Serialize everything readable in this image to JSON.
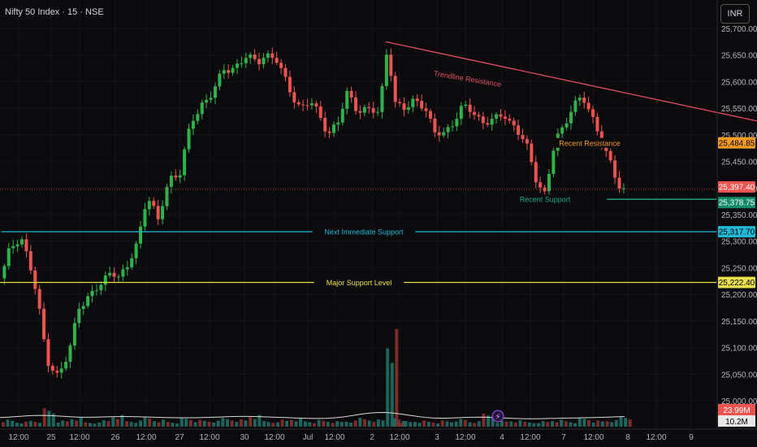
{
  "header": {
    "title": "Nifty 50 Index · 15 · NSE",
    "currency_button": "INR"
  },
  "colors": {
    "background": "#0b0b0d",
    "up": "#26a69a",
    "up_candle": "#2db34a",
    "down": "#ef5350",
    "trendline": "#e04f63",
    "resistance": "#f39c21",
    "support": "#1fa982",
    "next_support": "#22b8d6",
    "major_support": "#e8e04a"
  },
  "chart_data": {
    "type": "candlestick",
    "y_axis": {
      "ticks": [
        25000,
        25050,
        25100,
        25150,
        25200,
        25250,
        25300,
        25350,
        25400,
        25450,
        25500,
        25550,
        25600,
        25650,
        25700
      ],
      "tick_labels": [
        "25,000.00",
        "25,050.00",
        "25,100.00",
        "25,150.00",
        "25,200.00",
        "25,250.00",
        "25,300.00",
        "25,350.00",
        "25,400.00",
        "25,450.00",
        "25,500.00",
        "25,550.00",
        "25,600.00",
        "25,650.00",
        "25,700.00"
      ],
      "range": [
        24980,
        25725
      ]
    },
    "x_axis": {
      "labels": [
        "12:00",
        "25",
        "12:00",
        "26",
        "12:00",
        "27",
        "12:00",
        "30",
        "12:00",
        "Jul",
        "12:00",
        "2",
        "12:00",
        "3",
        "12:00",
        "4",
        "12:00",
        "7",
        "12:00",
        "8",
        "12:00",
        "9"
      ]
    },
    "price_labels": [
      {
        "value": 25484.85,
        "text": "25,484.85",
        "kind": "resistance"
      },
      {
        "value": 25397.4,
        "text": "25,397.40",
        "kind": "last"
      },
      {
        "value": 25378.75,
        "text": "25,378.75",
        "kind": "support"
      },
      {
        "value": 25317.7,
        "text": "25,317.70",
        "kind": "next_support"
      },
      {
        "value": 25222.4,
        "text": "25,222.40",
        "kind": "major_support"
      }
    ],
    "volume_labels": [
      {
        "text": "23.99M",
        "kind": "volume_last"
      },
      {
        "text": "10.2M",
        "kind": "volume_avg"
      }
    ],
    "annotations": [
      {
        "text": "Trendline Resistance",
        "kind": "trendline",
        "start_x": 28.1,
        "start_y": 25675,
        "end_x": 57.5,
        "end_y": 25513
      },
      {
        "text": "Recent Resistance",
        "kind": "resistance",
        "y": 25484.85,
        "start_x": 52.2,
        "end_x": 61.0
      },
      {
        "text": "Recent Support",
        "kind": "support",
        "y": 25378.75,
        "start_x": 44.2,
        "end_x": 61.0
      },
      {
        "text": "Next Immediate Support",
        "kind": "next_support",
        "y": 25317.7,
        "start_x": 0.1,
        "end_x": 61.0
      },
      {
        "text": "Major Support Level",
        "kind": "major_support",
        "y": 25222.4,
        "start_x": 0,
        "end_x": 61.0
      }
    ],
    "price_path": [
      [
        0,
        25230
      ],
      [
        0.6,
        25285
      ],
      [
        1.4,
        25312
      ],
      [
        2.0,
        25260
      ],
      [
        2.6,
        25190
      ],
      [
        3.3,
        25080
      ],
      [
        4.1,
        25045
      ],
      [
        4.9,
        25085
      ],
      [
        5.6,
        25180
      ],
      [
        6.4,
        25195
      ],
      [
        7.2,
        25215
      ],
      [
        8.0,
        25250
      ],
      [
        8.6,
        25230
      ],
      [
        9.2,
        25250
      ],
      [
        9.9,
        25300
      ],
      [
        10.6,
        25390
      ],
      [
        11.4,
        25335
      ],
      [
        12.2,
        25420
      ],
      [
        13.0,
        25430
      ],
      [
        13.8,
        25520
      ],
      [
        14.6,
        25560
      ],
      [
        15.4,
        25580
      ],
      [
        16.2,
        25620
      ],
      [
        17.0,
        25630
      ],
      [
        17.8,
        25645
      ],
      [
        18.6,
        25635
      ],
      [
        19.2,
        25655
      ],
      [
        20.0,
        25640
      ],
      [
        20.6,
        25605
      ],
      [
        21.1,
        25580
      ],
      [
        21.8,
        25550
      ],
      [
        22.5,
        25560
      ],
      [
        23.2,
        25535
      ],
      [
        23.8,
        25505
      ],
      [
        24.5,
        25520
      ],
      [
        25.2,
        25580
      ],
      [
        25.9,
        25550
      ],
      [
        26.7,
        25545
      ],
      [
        27.5,
        25540
      ],
      [
        28.1,
        25670
      ],
      [
        28.7,
        25555
      ],
      [
        29.4,
        25545
      ],
      [
        30.1,
        25570
      ],
      [
        30.8,
        25555
      ],
      [
        31.5,
        25500
      ],
      [
        32.2,
        25505
      ],
      [
        32.9,
        25525
      ],
      [
        33.6,
        25550
      ],
      [
        34.3,
        25545
      ],
      [
        35.1,
        25525
      ],
      [
        35.9,
        25525
      ],
      [
        36.6,
        25540
      ],
      [
        37.4,
        25515
      ],
      [
        38.2,
        25480
      ],
      [
        38.9,
        25420
      ],
      [
        39.6,
        25390
      ],
      [
        40.3,
        25485
      ],
      [
        40.9,
        25510
      ],
      [
        41.6,
        25560
      ],
      [
        42.3,
        25570
      ],
      [
        43.0,
        25530
      ],
      [
        43.6,
        25500
      ],
      [
        44.2,
        25460
      ],
      [
        44.9,
        25400
      ],
      [
        45.5,
        25390
      ]
    ],
    "volume_path": [
      [
        0,
        0.25
      ],
      [
        1,
        0.18
      ],
      [
        2,
        0.22
      ],
      [
        3,
        0.6
      ],
      [
        4,
        0.2
      ],
      [
        5,
        0.3
      ],
      [
        6,
        0.15
      ],
      [
        7,
        0.22
      ],
      [
        8,
        0.4
      ],
      [
        9,
        0.2
      ],
      [
        10,
        0.35
      ],
      [
        11,
        0.25
      ],
      [
        12,
        0.18
      ],
      [
        13,
        0.3
      ],
      [
        14,
        0.22
      ],
      [
        15,
        0.2
      ],
      [
        16,
        0.3
      ],
      [
        17,
        0.25
      ],
      [
        18,
        0.4
      ],
      [
        19,
        0.2
      ],
      [
        20,
        0.25
      ],
      [
        21,
        0.3
      ],
      [
        22,
        0.2
      ],
      [
        23,
        0.22
      ],
      [
        24,
        0.18
      ],
      [
        25,
        0.2
      ],
      [
        26,
        0.3
      ],
      [
        27,
        0.25
      ],
      [
        28,
        1.0
      ],
      [
        28.5,
        0.3
      ],
      [
        29,
        0.2
      ],
      [
        30,
        0.22
      ],
      [
        31,
        0.18
      ],
      [
        32,
        0.2
      ],
      [
        33,
        0.25
      ],
      [
        34,
        0.18
      ],
      [
        35,
        0.45
      ],
      [
        36,
        0.2
      ],
      [
        37,
        0.22
      ],
      [
        38,
        0.18
      ],
      [
        39,
        0.2
      ],
      [
        40,
        0.25
      ],
      [
        41,
        0.2
      ],
      [
        42,
        0.3
      ],
      [
        43,
        0.2
      ],
      [
        44,
        0.22
      ],
      [
        45,
        0.35
      ]
    ]
  }
}
